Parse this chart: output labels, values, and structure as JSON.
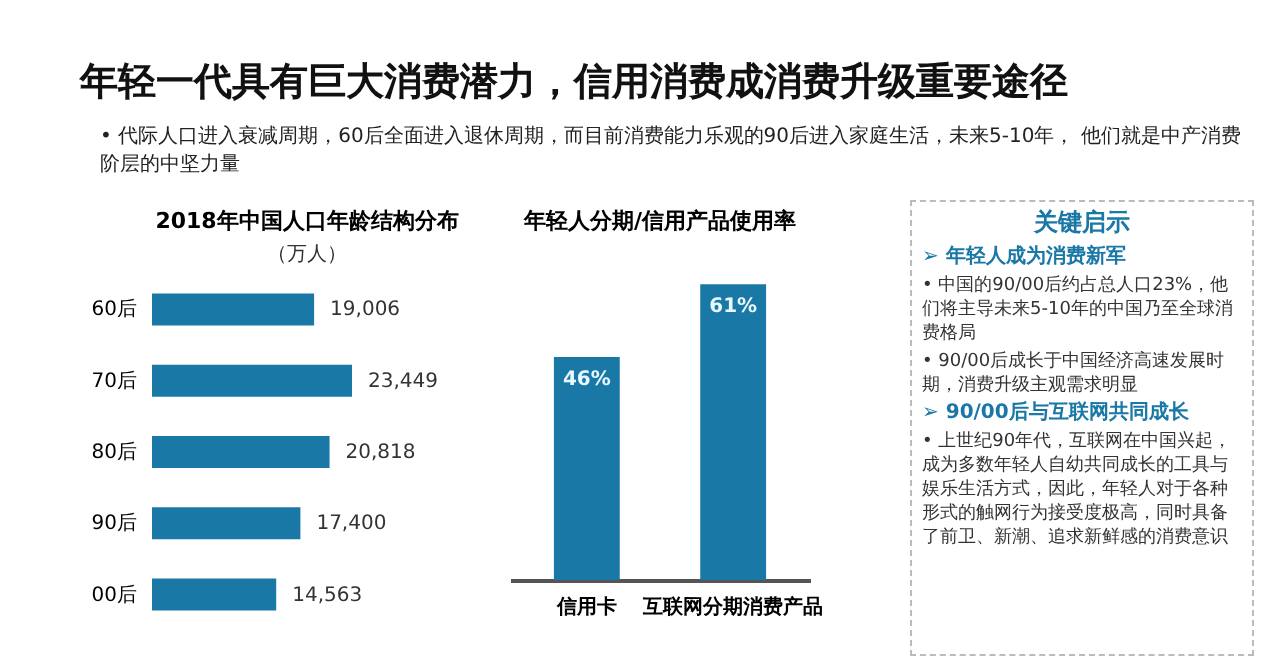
{
  "chart_data": [
    {
      "type": "other",
      "title": "年轻一代具有巨大消费潜力，信用消费成消费升级重要途径",
      "annotations": [
        "•  代际人口进入衰减周期，60后全面进入退休周期，而目前消费能力乐观的90后进入家庭生活，未来5-10年， 他们就是中产消费阶层的中坚力量"
      ]
    },
    {
      "type": "bar",
      "orientation": "horizontal",
      "title": "2018年中国人口年龄结构分布",
      "subtitle": "（万人）",
      "categories": [
        "60后",
        "70后",
        "80后",
        "90后",
        "00后"
      ],
      "values": [
        19006,
        23449,
        20818,
        17400,
        14563
      ],
      "color": "#1a78a6",
      "value_labels": [
        "19,006",
        "23,449",
        "20,818",
        "17,400",
        "14,563"
      ]
    },
    {
      "type": "bar",
      "title": "年轻人分期/信用产品使用率",
      "categories": [
        "信用卡",
        "互联网分期消费产品"
      ],
      "values": [
        46,
        61
      ],
      "color": "#1a78a6",
      "value_labels": [
        "46%",
        "61%"
      ]
    },
    {
      "type": "other",
      "title": "关键启示",
      "annotations": [
        "➢ 年轻人成为消费新军",
        "• 中国的90/00后约占总人口23%，他们将主导未来5-10年的中国乃至全球消费格局",
        "• 90/00后成长于中国经济高速发展时期，消费升级主观需求明显",
        "➢ 90/00后与互联网共同成长",
        "• 上世纪90年代，互联网在中国兴起，成为多数年轻人自幼共同成长的工具与娱乐生活方式，因此，年轻人对于各种形式的触网行为接受度极高，同时具备了前卫、新潮、追求新鲜感的消费意识"
      ]
    }
  ]
}
